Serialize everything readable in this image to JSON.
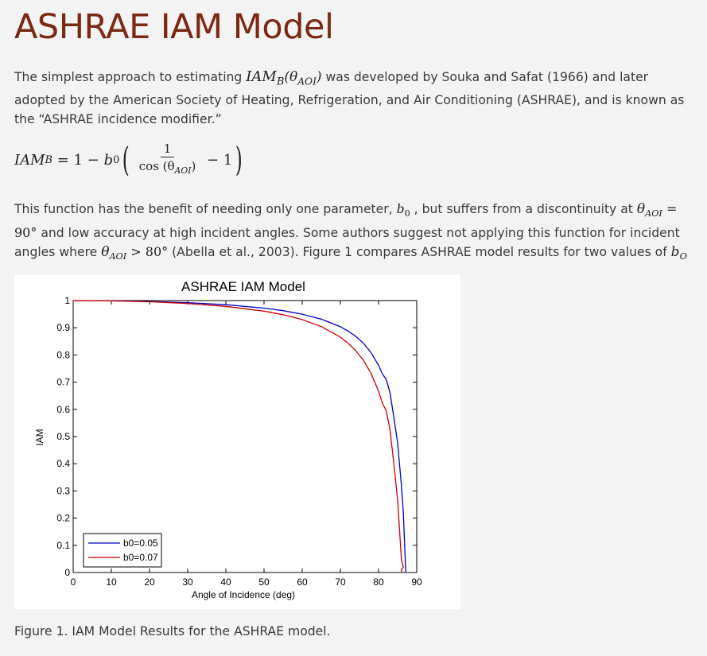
{
  "page": {
    "title": "ASHRAE IAM Model",
    "para1": {
      "before": "The simplest approach to estimating ",
      "math": "IAM",
      "math_sub": "B",
      "math_arg": "(θ",
      "math_arg_sub": "AOI",
      "math_close": ")",
      "after": " was developed by Souka and Safat (1966) and later adopted by the American Society of Heating, Refrigeration, and Air Conditioning (ASHRAE), and is known as the “ASHRAE incidence modifier.”"
    },
    "equation": {
      "lhs": "IAM",
      "lhs_sub": "B",
      "eq": " = 1 − ",
      "b": "b",
      "b_sub": "0",
      "num": "1",
      "den": "cos (θ",
      "den_sub": "AOI",
      "den_close": ")",
      "minus_one": " − 1"
    },
    "para2": {
      "t1": "This function has the benefit of needing only one parameter, ",
      "b": "b",
      "b_sub": "0",
      "t2": " , but suffers from a discontinuity at ",
      "theta": "θ",
      "theta_sub": "AOI",
      "eq90": " = 90°",
      "t3": " and low accuracy at high incident angles.  Some authors suggest not applying this function for incident angles where ",
      "gt80": " > 80°",
      "t4": "  (Abella et al., 2003).  Figure 1 compares ASHRAE model results for two values of ",
      "bo": "b",
      "bo_sub": "O",
      "t5": " ."
    },
    "caption": "Figure 1. IAM Model Results for the ASHRAE model."
  },
  "chart_data": {
    "type": "line",
    "title": "ASHRAE IAM Model",
    "xlabel": "Angle of Incidence (deg)",
    "ylabel": "IAM",
    "xlim": [
      0,
      90
    ],
    "ylim": [
      0,
      1
    ],
    "xticks": [
      "0",
      "10",
      "20",
      "30",
      "40",
      "50",
      "60",
      "70",
      "80",
      "90"
    ],
    "yticks": [
      "0",
      "0.1",
      "0.2",
      "0.3",
      "0.4",
      "0.5",
      "0.6",
      "0.7",
      "0.8",
      "0.9",
      "1"
    ],
    "grid": false,
    "legend_position": "bottom-left",
    "series": [
      {
        "name": "b0=0.05",
        "color": "#0000cc",
        "x": [
          0,
          10,
          20,
          30,
          40,
          50,
          55,
          60,
          65,
          70,
          72,
          74,
          76,
          78,
          80,
          81,
          82,
          83,
          84,
          85,
          86,
          86.5,
          87,
          87.14
        ],
        "y": [
          1.0,
          0.9992,
          0.9968,
          0.9923,
          0.9847,
          0.9722,
          0.9628,
          0.95,
          0.9317,
          0.9038,
          0.8881,
          0.8687,
          0.8435,
          0.8095,
          0.7621,
          0.7304,
          0.7109,
          0.6612,
          0.5717,
          0.4763,
          0.3184,
          0.2178,
          0.0451,
          0.0
        ]
      },
      {
        "name": "b0=0.07",
        "color": "#cc0000",
        "x": [
          0,
          10,
          20,
          30,
          40,
          50,
          55,
          60,
          65,
          70,
          72,
          74,
          76,
          78,
          80,
          81,
          82,
          83,
          84,
          85,
          86,
          86.5,
          86.0,
          86.07
        ],
        "y": [
          1.0,
          0.9989,
          0.9955,
          0.9892,
          0.9786,
          0.9611,
          0.948,
          0.93,
          0.9044,
          0.8653,
          0.8433,
          0.8162,
          0.7809,
          0.7333,
          0.6669,
          0.6226,
          0.5951,
          0.5257,
          0.4003,
          0.2668,
          0.0457,
          0.02,
          0.01,
          0.0
        ]
      }
    ]
  }
}
